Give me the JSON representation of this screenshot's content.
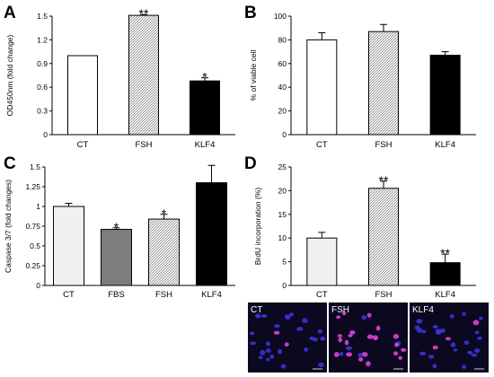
{
  "chart_data": [
    {
      "panel": "A",
      "type": "bar",
      "categories": [
        "CT",
        "FSH",
        "KLF4"
      ],
      "values": [
        1.0,
        1.51,
        0.68
      ],
      "errors": [
        0.0,
        0.01,
        0.04
      ],
      "significance": [
        "",
        "**",
        "*"
      ],
      "ylabel": "OD450nm (fold change)",
      "ylim": [
        0,
        1.5
      ],
      "yticks": [
        0,
        0.3,
        0.6,
        0.9,
        1.2,
        1.5
      ],
      "ytick_labels": [
        "0",
        "0.3",
        "0.6",
        "0.9",
        "1.2",
        "1.5"
      ],
      "fills": [
        "white",
        "hatch",
        "black"
      ]
    },
    {
      "panel": "B",
      "type": "bar",
      "categories": [
        "CT",
        "FSH",
        "KLF4"
      ],
      "values": [
        80,
        87,
        67
      ],
      "errors": [
        6,
        6,
        3
      ],
      "significance": [
        "",
        "",
        ""
      ],
      "ylabel": "% of viable cell",
      "ylim": [
        0,
        100
      ],
      "yticks": [
        0,
        20,
        40,
        60,
        80,
        100
      ],
      "ytick_labels": [
        "0",
        "20",
        "40",
        "60",
        "80",
        "100"
      ],
      "fills": [
        "white",
        "hatch",
        "black"
      ]
    },
    {
      "panel": "C",
      "type": "bar",
      "categories": [
        "CT",
        "FBS",
        "FSH",
        "KLF4"
      ],
      "values": [
        1.0,
        0.71,
        0.84,
        1.3
      ],
      "errors": [
        0.04,
        0.02,
        0.06,
        0.22
      ],
      "significance": [
        "",
        "*",
        "*",
        ""
      ],
      "ylabel": "Caspase 3/7 (fold changes)",
      "ylim": [
        0,
        1.5
      ],
      "yticks": [
        0,
        0.25,
        0.5,
        0.75,
        1,
        1.25,
        1.5
      ],
      "ytick_labels": [
        "0",
        "0.25",
        "0.5",
        "0.75",
        "1",
        "1.25",
        "1.5"
      ],
      "fills": [
        "lightgray",
        "darkgray",
        "hatch",
        "black"
      ]
    },
    {
      "panel": "D",
      "type": "bar",
      "categories": [
        "CT",
        "FSH",
        "KLF4"
      ],
      "values": [
        10.0,
        20.5,
        4.8
      ],
      "errors": [
        1.2,
        1.5,
        1.8
      ],
      "significance": [
        "",
        "**",
        "**"
      ],
      "ylabel": "BrdU incorporation (%)",
      "ylim": [
        0,
        25
      ],
      "yticks": [
        0,
        5,
        10,
        15,
        20,
        25
      ],
      "ytick_labels": [
        "0",
        "5",
        "10",
        "15",
        "20",
        "25"
      ],
      "fills": [
        "lightgray",
        "hatch",
        "black"
      ]
    }
  ],
  "colors": {
    "white_bar": "#ffffff",
    "lightgray_bar": "#f0f0f0",
    "darkgray_bar": "#7d7d7d",
    "black_bar": "#000000",
    "hatch_stroke": "#8a8a8a",
    "micrograph_bg": "#0b0820",
    "nucleus_blue": "#3a33d8",
    "nucleus_pink": "#e040d8"
  },
  "micrographs": [
    {
      "label": "CT"
    },
    {
      "label": "FSH"
    },
    {
      "label": "KLF4"
    }
  ]
}
